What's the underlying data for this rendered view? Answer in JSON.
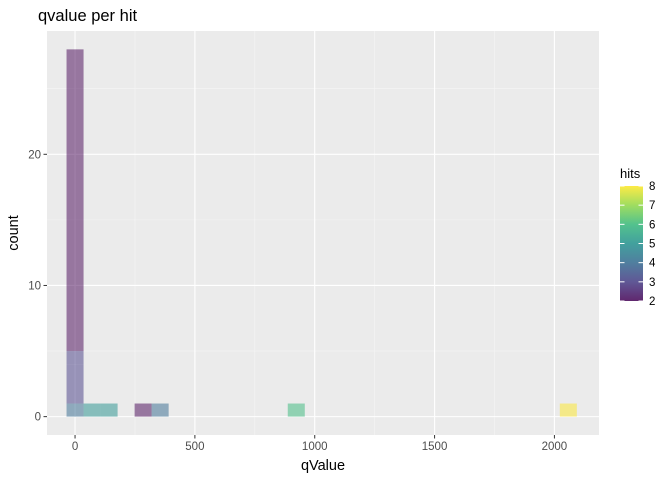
{
  "chart_data": {
    "type": "histogram",
    "title": "qvalue per hit",
    "xlabel": "qValue",
    "ylabel": "count",
    "xlim": [
      -117,
      2186
    ],
    "ylim": [
      -1.4,
      29.4
    ],
    "x_ticks": [
      0,
      500,
      1000,
      1500,
      2000
    ],
    "x_tick_labels": [
      "0",
      "500",
      "1000",
      "1500",
      "2000"
    ],
    "y_ticks": [
      0,
      10,
      20
    ],
    "y_tick_labels": [
      "0",
      "10",
      "20"
    ],
    "bin_width": 71,
    "bar_opacity": 0.5,
    "bars": [
      {
        "x0": -35.5,
        "x1": 35.5,
        "ymin": 5,
        "ymax": 28,
        "hits": 2
      },
      {
        "x0": -35.5,
        "x1": 35.5,
        "ymin": 4,
        "ymax": 5,
        "hits": 3
      },
      {
        "x0": -35.5,
        "x1": 35.5,
        "ymin": 1,
        "ymax": 4,
        "hits": 3
      },
      {
        "x0": -35.5,
        "x1": 35.5,
        "ymin": 0,
        "ymax": 1,
        "hits": 4
      },
      {
        "x0": 35.5,
        "x1": 106.5,
        "ymin": 0,
        "ymax": 1,
        "hits": 5
      },
      {
        "x0": 106.5,
        "x1": 177.5,
        "ymin": 0,
        "ymax": 1,
        "hits": 5
      },
      {
        "x0": 248.5,
        "x1": 319.5,
        "ymin": 0,
        "ymax": 1,
        "hits": 2
      },
      {
        "x0": 319.5,
        "x1": 390.5,
        "ymin": 0,
        "ymax": 1,
        "hits": 4
      },
      {
        "x0": 887.5,
        "x1": 958.5,
        "ymin": 0,
        "ymax": 1,
        "hits": 6
      },
      {
        "x0": 2022.5,
        "x1": 2093.5,
        "ymin": 0,
        "ymax": 1,
        "hits": 8
      }
    ],
    "legend": {
      "title": "hits",
      "position": "right",
      "min": 2,
      "max": 8,
      "breaks": [
        2,
        3,
        4,
        5,
        6,
        7,
        8
      ],
      "break_labels": [
        "2",
        "3",
        "4",
        "5",
        "6",
        "7",
        "8"
      ]
    },
    "colors": {
      "panel_background": "#EBEBEB",
      "grid_major": "#FFFFFF",
      "grid_minor": "#F5F5F5",
      "text": "#000000",
      "tick_text": "#4D4D4D",
      "tick_mark": "#333333",
      "viridis": [
        "#440154",
        "#443A83",
        "#31688E",
        "#21908C",
        "#35B779",
        "#8FD744",
        "#FDE725"
      ]
    }
  }
}
